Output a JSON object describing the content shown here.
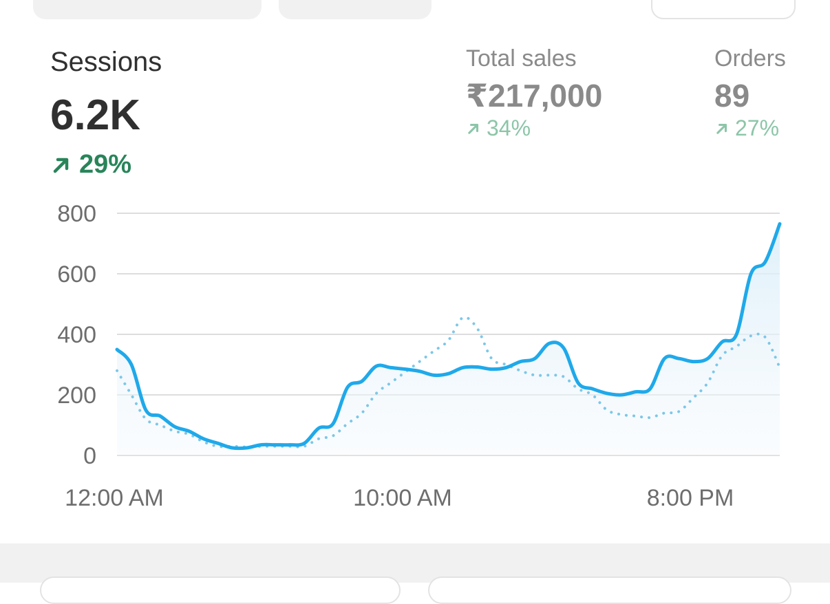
{
  "metrics": {
    "sessions": {
      "label": "Sessions",
      "value": "6.2K",
      "delta": "29%",
      "trend": "up",
      "color": "#29845a"
    },
    "total_sales": {
      "label": "Total sales",
      "value": "₹217,000",
      "delta": "34%",
      "trend": "up"
    },
    "orders": {
      "label": "Orders",
      "value": "89",
      "delta": "27%",
      "trend": "up"
    }
  },
  "icons": {
    "trend_up": "arrow-up-right-icon"
  },
  "chart_data": {
    "type": "line",
    "xlabel": "",
    "ylabel": "",
    "ylim": [
      0,
      800
    ],
    "yticks": [
      0,
      200,
      400,
      600,
      800
    ],
    "xtick_labels": [
      "12:00 AM",
      "10:00 AM",
      "8:00 PM"
    ],
    "grid": true,
    "series": [
      {
        "style": "solid",
        "color": "#1fa9ea",
        "x": [
          0,
          0.5,
          1,
          1.5,
          2,
          2.5,
          3,
          3.5,
          4,
          4.5,
          5,
          5.5,
          6,
          6.5,
          7,
          7.5,
          8,
          8.5,
          9,
          9.5,
          10,
          10.5,
          11,
          11.5,
          12,
          12.5,
          13,
          13.5,
          14,
          14.5,
          15,
          15.5,
          16,
          16.5,
          17,
          17.5,
          18,
          18.5,
          19,
          19.5,
          20,
          20.5,
          21,
          21.5,
          22,
          22.5,
          23
        ],
        "values": [
          350,
          300,
          150,
          130,
          95,
          80,
          55,
          40,
          25,
          25,
          35,
          35,
          35,
          40,
          90,
          105,
          225,
          245,
          295,
          290,
          285,
          278,
          265,
          270,
          290,
          292,
          285,
          290,
          310,
          320,
          370,
          355,
          240,
          220,
          205,
          200,
          210,
          220,
          320,
          320,
          310,
          320,
          375,
          400,
          600,
          640,
          765
        ]
      },
      {
        "style": "dotted",
        "color": "#7cc7e8",
        "x": [
          0,
          0.5,
          1,
          1.5,
          2,
          2.5,
          3,
          3.5,
          4,
          4.5,
          5,
          5.5,
          6,
          6.5,
          7,
          7.5,
          8,
          8.5,
          9,
          9.5,
          10,
          10.5,
          11,
          11.5,
          12,
          12.5,
          13,
          13.5,
          14,
          14.5,
          15,
          15.5,
          16,
          16.5,
          17,
          17.5,
          18,
          18.5,
          19,
          19.5,
          20,
          20.5,
          21,
          21.5,
          22,
          22.5,
          23
        ],
        "values": [
          280,
          200,
          120,
          100,
          80,
          70,
          45,
          30,
          30,
          28,
          30,
          30,
          30,
          30,
          55,
          65,
          105,
          140,
          205,
          240,
          275,
          310,
          345,
          380,
          455,
          420,
          320,
          300,
          280,
          265,
          265,
          260,
          220,
          200,
          150,
          135,
          130,
          125,
          140,
          145,
          190,
          240,
          330,
          360,
          395,
          390,
          290
        ]
      }
    ]
  }
}
